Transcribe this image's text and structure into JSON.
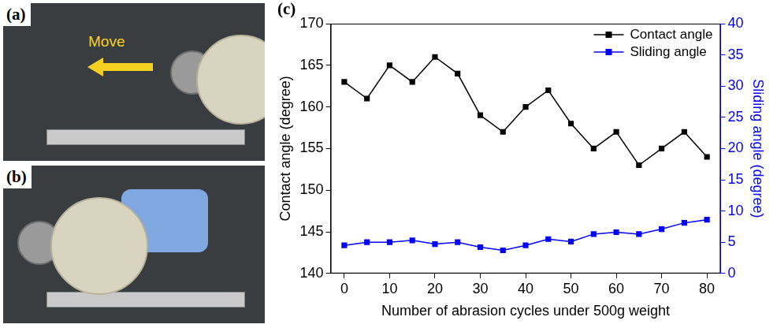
{
  "chart_data": {
    "type": "line",
    "panel_label": "(c)",
    "x_label": "Number of abrasion cycles under 500g weight",
    "y_label": "Contact angle (degree)",
    "y2_label": "Sliding angle (degree)",
    "x": [
      0,
      5,
      10,
      15,
      20,
      25,
      30,
      35,
      40,
      45,
      50,
      55,
      60,
      65,
      70,
      75,
      80
    ],
    "series": [
      {
        "name": "Contact angle",
        "color": "#000000",
        "marker": "square",
        "line_style": "solid",
        "values": [
          163,
          161,
          165,
          163,
          166,
          164,
          159,
          157,
          160,
          162,
          158,
          155,
          157,
          153,
          155,
          157,
          154
        ]
      },
      {
        "name": "Sliding angle",
        "color": "#0000ff",
        "marker": "square",
        "line_style": "solid",
        "axis": "y2",
        "values": [
          4.5,
          5.0,
          5.0,
          5.3,
          4.7,
          5.0,
          4.2,
          3.7,
          4.5,
          5.5,
          5.1,
          6.3,
          6.6,
          6.3,
          7.1,
          8.1,
          8.6
        ]
      }
    ],
    "xlim": [
      -3,
      83
    ],
    "xticks": [
      0,
      10,
      20,
      30,
      40,
      50,
      60,
      70,
      80
    ],
    "ylim": [
      140,
      170
    ],
    "yticks": [
      140,
      145,
      150,
      155,
      160,
      165,
      170
    ],
    "y2lim": [
      0,
      40
    ],
    "y2ticks": [
      0,
      5,
      10,
      15,
      20,
      25,
      30,
      35,
      40
    ],
    "grid": false,
    "legend": "upper right"
  },
  "photo_panels": [
    {
      "label": "(a)",
      "annotation": "Move"
    },
    {
      "label": "(b)"
    }
  ]
}
